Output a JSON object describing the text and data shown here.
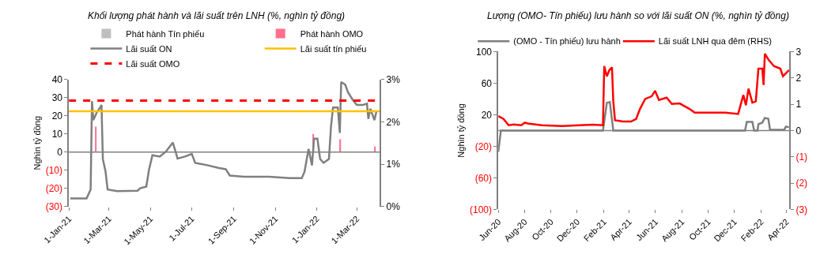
{
  "chart_data": [
    {
      "type": "line",
      "title": "Khối lượng phát hành và lãi suất trên LNH (%, nghìn tỷ đồng)",
      "ylabel": "Nghìn tỷ đồng",
      "legend": "top",
      "xlim": [
        "2021-01-01",
        "2022-04-04"
      ],
      "xticks": [
        {
          "value": "2021-01-01",
          "label": "1-Jan-21"
        },
        {
          "value": "2021-03-01",
          "label": "1-Mar-21"
        },
        {
          "value": "2021-05-01",
          "label": "1-May-21"
        },
        {
          "value": "2021-07-01",
          "label": "1-Jul-21"
        },
        {
          "value": "2021-09-01",
          "label": "1-Sep-21"
        },
        {
          "value": "2021-11-01",
          "label": "1-Nov-21"
        },
        {
          "value": "2022-01-01",
          "label": "1-Jan-22"
        },
        {
          "value": "2022-03-01",
          "label": "1-Mar-22"
        }
      ],
      "ref_lines": [
        {
          "axis": "y",
          "value": 0,
          "color": "#808080"
        }
      ],
      "ylim": [
        -30,
        40
      ],
      "yticks": [
        40,
        30,
        20,
        10,
        0,
        {
          "value": -10,
          "label": "(10)"
        },
        {
          "value": -20,
          "label": "(20)"
        },
        {
          "value": -30,
          "label": "(30)"
        }
      ],
      "y2lim": [
        0,
        3
      ],
      "y2ticks": [
        {
          "value": 0,
          "label": "0%"
        },
        {
          "value": 1,
          "label": "1%"
        },
        {
          "value": 2,
          "label": "2%"
        },
        {
          "value": 3,
          "label": "3%"
        }
      ],
      "series": [
        {
          "name": "Phát hành Tín phiếu",
          "type": "bar",
          "color": "#bfbfbf"
        },
        {
          "name": "Phát hành OMO",
          "type": "bar",
          "color": "#ff6f8a",
          "x": [
            "2021-02-10",
            "2021-12-27",
            "2022-02-05",
            "2022-03-28"
          ],
          "values": [
            14,
            10,
            7,
            3
          ]
        },
        {
          "name": "Lãi suất ON",
          "axis": "y2",
          "color": "#7f7f7f",
          "x": [
            "2021-01-03",
            "2021-01-27",
            "2021-02-02",
            "2021-02-04",
            "2021-02-06",
            "2021-02-11",
            "2021-02-16",
            "2021-02-18",
            "2021-02-20",
            "2021-02-24",
            "2021-02-27",
            "2021-03-13",
            "2021-04-12",
            "2021-04-16",
            "2021-04-25",
            "2021-04-29",
            "2021-05-04",
            "2021-05-15",
            "2021-05-24",
            "2021-06-03",
            "2021-06-07",
            "2021-06-10",
            "2021-06-21",
            "2021-07-01",
            "2021-07-06",
            "2021-07-25",
            "2021-08-09",
            "2021-08-20",
            "2021-08-26",
            "2021-09-16",
            "2021-10-23",
            "2021-11-22",
            "2021-12-10",
            "2021-12-14",
            "2021-12-20",
            "2021-12-25",
            "2021-12-28",
            "2022-01-02",
            "2022-01-06",
            "2022-01-11",
            "2022-01-19",
            "2022-01-22",
            "2022-01-25",
            "2022-02-01",
            "2022-02-04",
            "2022-02-06",
            "2022-02-12",
            "2022-02-16",
            "2022-02-23",
            "2022-03-01",
            "2022-03-10",
            "2022-03-16",
            "2022-03-18",
            "2022-03-21",
            "2022-03-27",
            "2022-03-30"
          ],
          "values": [
            0.19,
            0.19,
            0.4,
            2.49,
            2.04,
            2.22,
            2.34,
            2.4,
            1.12,
            0.82,
            0.4,
            0.36,
            0.37,
            0.43,
            0.47,
            0.87,
            1.21,
            1.18,
            1.3,
            1.51,
            1.3,
            1.13,
            1.18,
            1.24,
            1.03,
            0.97,
            0.91,
            0.88,
            0.73,
            0.7,
            0.7,
            0.67,
            0.67,
            0.82,
            1.36,
            0.97,
            1.6,
            1.6,
            1.12,
            1.03,
            1.12,
            1.89,
            2.34,
            2.34,
            1.74,
            2.94,
            2.88,
            2.7,
            2.52,
            2.4,
            2.4,
            2.43,
            2.07,
            2.31,
            2.04,
            2.25
          ]
        },
        {
          "name": "Lãi suất tín phiếu",
          "axis": "y2",
          "color": "#ffc000",
          "x": [
            "2021-01-01",
            "2022-04-04"
          ],
          "values": [
            2.25,
            2.25
          ]
        },
        {
          "name": "Lãi suất OMO",
          "axis": "y2",
          "color": "#ff0000",
          "line_style": "dashed",
          "x": [
            "2021-01-01",
            "2022-04-04"
          ],
          "values": [
            2.5,
            2.5
          ]
        }
      ]
    },
    {
      "type": "line",
      "title": "Lượng (OMO- Tín phiếu) lưu hành so với lãi suất ON (%, nghìn tỷ đồng)",
      "ylabel": "Nghìn tỷ đồng",
      "legend": "top",
      "xlim": [
        "2020-06-01",
        "2022-04-08"
      ],
      "xticks": [
        {
          "value": "2020-06-01",
          "label": "Jun-20"
        },
        {
          "value": "2020-08-01",
          "label": "Aug-20"
        },
        {
          "value": "2020-10-01",
          "label": "Oct-20"
        },
        {
          "value": "2020-12-01",
          "label": "Dec-20"
        },
        {
          "value": "2021-02-01",
          "label": "Feb-21"
        },
        {
          "value": "2021-04-01",
          "label": "Apr-21"
        },
        {
          "value": "2021-06-01",
          "label": "Jun-21"
        },
        {
          "value": "2021-08-01",
          "label": "Aug-21"
        },
        {
          "value": "2021-10-01",
          "label": "Oct-21"
        },
        {
          "value": "2021-12-01",
          "label": "Dec-21"
        },
        {
          "value": "2022-02-01",
          "label": "Feb-22"
        },
        {
          "value": "2022-04-01",
          "label": "Apr-22"
        }
      ],
      "ref_lines": [
        {
          "axis": "y",
          "value": 0,
          "color": "#808080"
        }
      ],
      "ylim": [
        -100,
        100
      ],
      "yticks": [
        100,
        60,
        20,
        {
          "value": -20,
          "label": "(20)"
        },
        {
          "value": -60,
          "label": "(60)"
        },
        {
          "value": -100,
          "label": "(100)"
        }
      ],
      "y2lim": [
        -3,
        3
      ],
      "y2ticks": [
        3,
        2,
        1,
        0,
        {
          "value": -1,
          "label": "(1)"
        },
        {
          "value": -2,
          "label": "(2)"
        },
        {
          "value": -3,
          "label": "(3)"
        }
      ],
      "series": [
        {
          "name": "(OMO - Tín phiếu) lưu hành",
          "color": "#7f7f7f",
          "x": [
            "2020-06-01",
            "2020-06-07",
            "2021-01-30",
            "2021-02-08",
            "2021-02-15",
            "2021-02-23",
            "2021-12-26",
            "2021-12-30",
            "2022-01-12",
            "2022-01-16",
            "2022-01-24",
            "2022-01-26",
            "2022-02-04",
            "2022-02-10",
            "2022-02-18",
            "2022-02-22",
            "2022-03-27",
            "2022-03-31",
            "2022-04-07"
          ],
          "values": [
            -27,
            0,
            0,
            35,
            36,
            0,
            0,
            11,
            11,
            0,
            0,
            8,
            10,
            16,
            15,
            1,
            1,
            5,
            4
          ]
        },
        {
          "name": "Lãi suất LNH qua đêm (RHS)",
          "axis": "y2",
          "color": "#ff0000",
          "x": [
            "2020-06-01",
            "2020-06-13",
            "2020-06-25",
            "2020-07-07",
            "2020-07-24",
            "2020-08-02",
            "2020-08-08",
            "2020-09-10",
            "2020-10-27",
            "2021-01-06",
            "2021-01-30",
            "2021-02-02",
            "2021-02-08",
            "2021-02-14",
            "2021-02-20",
            "2021-02-23",
            "2021-02-27",
            "2021-03-18",
            "2021-04-05",
            "2021-04-17",
            "2021-04-26",
            "2021-05-08",
            "2021-05-23",
            "2021-05-31",
            "2021-06-09",
            "2021-06-27",
            "2021-07-09",
            "2021-07-27",
            "2021-08-19",
            "2021-08-31",
            "2021-11-10",
            "2021-12-10",
            "2021-12-22",
            "2021-12-28",
            "2022-01-03",
            "2022-01-12",
            "2022-01-20",
            "2022-01-26",
            "2022-02-04",
            "2022-02-07",
            "2022-02-10",
            "2022-02-19",
            "2022-03-03",
            "2022-03-18",
            "2022-03-24",
            "2022-04-02",
            "2022-04-07"
          ],
          "values": [
            0.55,
            0.44,
            0.2,
            0.23,
            0.2,
            0.3,
            0.27,
            0.2,
            0.17,
            0.22,
            0.2,
            2.45,
            2.06,
            2.3,
            2.4,
            1.11,
            0.39,
            0.34,
            0.34,
            0.44,
            0.82,
            1.2,
            1.3,
            1.51,
            1.16,
            1.25,
            1.01,
            1.03,
            0.82,
            0.68,
            0.68,
            0.63,
            1.35,
            0.96,
            1.59,
            1.06,
            1.11,
            2.35,
            2.35,
            1.73,
            2.92,
            2.68,
            2.45,
            2.35,
            2.06,
            2.21,
            2.3
          ]
        }
      ]
    }
  ]
}
